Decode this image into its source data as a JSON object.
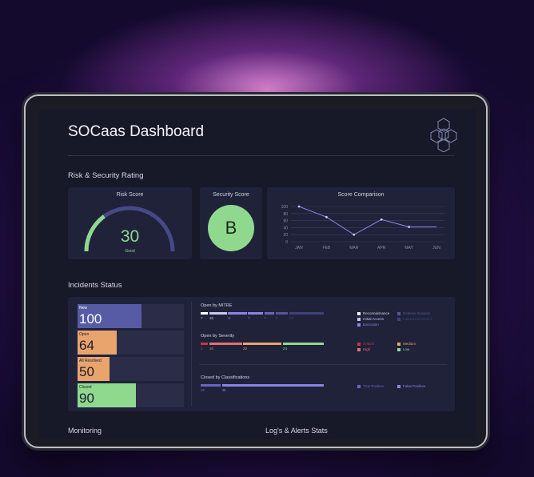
{
  "header": {
    "title": "SOCaas Dashboard"
  },
  "risk_section": {
    "heading": "Risk & Security Rating",
    "risk_score": {
      "title": "Risk Score",
      "value": "30",
      "label": "Good",
      "level": 0.3
    },
    "security_score": {
      "title": "Security Score",
      "grade": "B"
    },
    "score_comparison": {
      "title": "Score Comparison",
      "chart_data": {
        "type": "line",
        "x": [
          "JAN",
          "FEB",
          "MAR",
          "APR",
          "MAY",
          "JUN"
        ],
        "values": [
          100,
          70,
          20,
          63,
          42,
          42
        ],
        "ylim": [
          0,
          100
        ],
        "yticks": [
          "100",
          "80",
          "60",
          "40",
          "20",
          "0"
        ],
        "grid": true,
        "color": "#8a84e8"
      }
    }
  },
  "incidents": {
    "heading": "Incidents Status",
    "tiles": [
      {
        "label": "New",
        "value": "100",
        "fill": 0.6,
        "color": "#575ba6",
        "text_color": "#ffffff"
      },
      {
        "label": "Open",
        "value": "64",
        "fill": 0.37,
        "color": "#e9a46e",
        "text_color": "#1a1a2a"
      },
      {
        "label": "All Resolved",
        "value": "50",
        "fill": 0.3,
        "color": "#e9a46e",
        "text_color": "#1a1a2a"
      },
      {
        "label": "Closed",
        "value": "90",
        "fill": 0.55,
        "color": "#8fd98f",
        "text_color": "#1a1a2a"
      }
    ],
    "mitre": {
      "title": "Open by MITRE",
      "segments": [
        {
          "value": "7",
          "width": 0.07,
          "color": "#ffffff"
        },
        {
          "value": "15",
          "width": 0.15,
          "color": "#c9c8f0"
        },
        {
          "value": "8",
          "width": 0.16,
          "color": "#8a84e8"
        },
        {
          "value": "7",
          "width": 0.13,
          "color": "#8a84e8"
        },
        {
          "value": "7",
          "width": 0.09,
          "color": "#6a66c0"
        },
        {
          "value": "7",
          "width": 0.11,
          "color": "#54569a"
        },
        {
          "value": "28",
          "width": 0.29,
          "color": "#3f4278"
        }
      ],
      "legend": [
        {
          "label": "Reconnaissance",
          "color": "#ffffff"
        },
        {
          "label": "Defense Evasion",
          "color": "#54569a"
        },
        {
          "label": "Initial Access",
          "color": "#c9c8f0"
        },
        {
          "label": "Lateral Movement",
          "color": "#3f4278"
        },
        {
          "label": "Execution",
          "color": "#8a84e8"
        }
      ]
    },
    "severity": {
      "title": "Open by Severity",
      "segments": [
        {
          "value": "2",
          "width": 0.07,
          "color": "#c0393b"
        },
        {
          "value": "16",
          "width": 0.27,
          "color": "#e77070"
        },
        {
          "value": "22",
          "width": 0.32,
          "color": "#e9a46e"
        },
        {
          "value": "24",
          "width": 0.34,
          "color": "#8fd98f"
        }
      ],
      "legend": [
        {
          "label": "Critical",
          "color": "#c0393b"
        },
        {
          "label": "Medium",
          "color": "#e9a46e"
        },
        {
          "label": "High",
          "color": "#e77070"
        },
        {
          "label": "Low",
          "color": "#8fd98f"
        }
      ]
    },
    "classifications": {
      "title": "Closed by Classifications",
      "segments": [
        {
          "value": "25",
          "width": 0.17,
          "color": "#6a66c0"
        },
        {
          "value": "45",
          "width": 0.83,
          "color": "#8a84e8"
        }
      ],
      "legend": [
        {
          "label": "True Positive",
          "color": "#6a66c0"
        },
        {
          "label": "False Positive",
          "color": "#8a84e8"
        }
      ]
    }
  },
  "bottom": {
    "monitoring": "Monitoring",
    "logs": "Log's & Alerts Stats"
  }
}
